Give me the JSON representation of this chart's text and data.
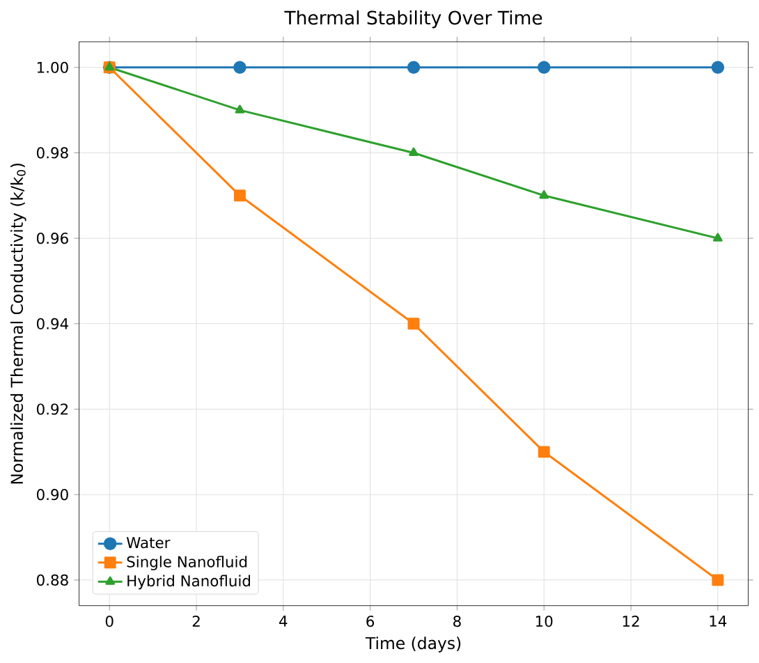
{
  "chart_data": {
    "type": "line",
    "title": "Thermal Stability Over Time",
    "xlabel": "Time (days)",
    "ylabel": "Normalized Thermal Conductivity (k/k$_{0}$)",
    "x": [
      0,
      3,
      7,
      10,
      14
    ],
    "series": [
      {
        "name": "Water",
        "color": "#1f77b4",
        "marker": "circle",
        "values": [
          1.0,
          1.0,
          1.0,
          1.0,
          1.0
        ]
      },
      {
        "name": "Single Nanofluid",
        "color": "#ff7f0e",
        "marker": "square",
        "values": [
          1.0,
          0.97,
          0.94,
          0.91,
          0.88
        ]
      },
      {
        "name": "Hybrid Nanofluid",
        "color": "#2ca02c",
        "marker": "triangle",
        "values": [
          1.0,
          0.99,
          0.98,
          0.97,
          0.96
        ]
      }
    ],
    "xlim": [
      -0.7,
      14.7
    ],
    "ylim": [
      0.874,
      1.006
    ],
    "xticks": [
      0,
      2,
      4,
      6,
      8,
      10,
      12,
      14
    ],
    "yticks": [
      {
        "value": 0.88,
        "label": "0.88"
      },
      {
        "value": 0.9,
        "label": "0.90"
      },
      {
        "value": 0.92,
        "label": "0.92"
      },
      {
        "value": 0.94,
        "label": "0.94"
      },
      {
        "value": 0.96,
        "label": "0.96"
      },
      {
        "value": 0.98,
        "label": "0.98"
      },
      {
        "value": 1.0,
        "label": "1.00"
      }
    ],
    "grid": true,
    "legend": "bottom left",
    "line_style": "solid"
  }
}
